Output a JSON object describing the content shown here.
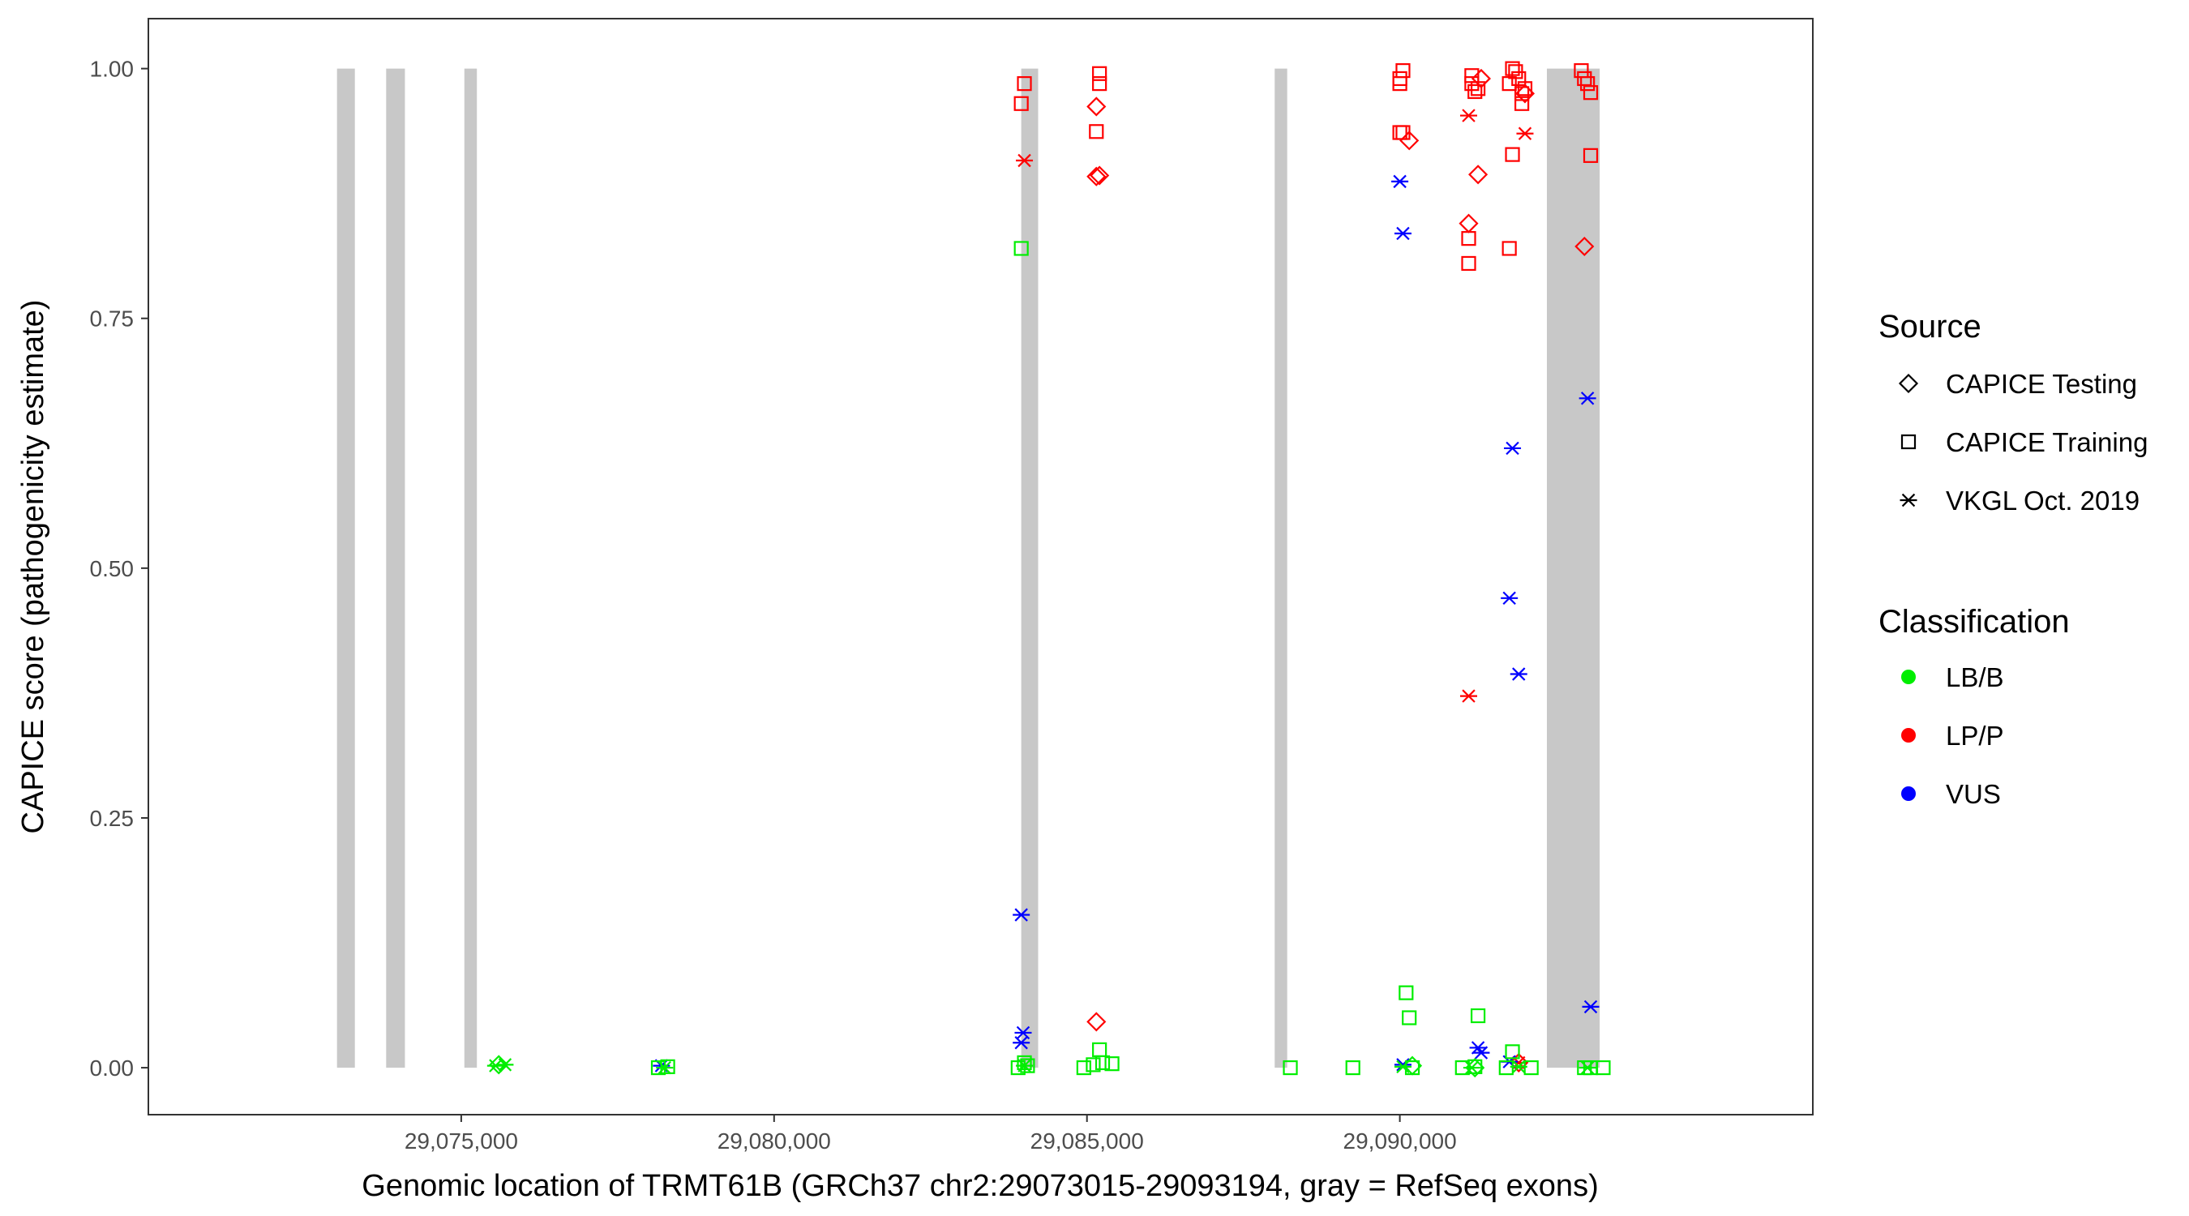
{
  "chart_data": {
    "type": "scatter",
    "xlabel": "Genomic location of TRMT61B (GRCh37 chr2:29073015-29093194, gray = RefSeq exons)",
    "ylabel": "CAPICE score (pathogenicity estimate)",
    "xlim": [
      29070000,
      29096600
    ],
    "ylim": [
      -0.047,
      1.05
    ],
    "x_ticks": [
      29075000,
      29080000,
      29085000,
      29090000
    ],
    "x_tick_labels": [
      "29,075,000",
      "29,080,000",
      "29,085,000",
      "29,090,000"
    ],
    "y_ticks": [
      0,
      0.25,
      0.5,
      0.75,
      1.0
    ],
    "y_tick_labels": [
      "0.00",
      "0.25",
      "0.50",
      "0.75",
      "1.00"
    ],
    "grid": false,
    "exons": [
      [
        29073015,
        29073300
      ],
      [
        29073800,
        29074100
      ],
      [
        29075050,
        29075250
      ],
      [
        29083950,
        29084220
      ],
      [
        29088000,
        29088200
      ],
      [
        29092350,
        29093194
      ]
    ],
    "exon_color": "#c8c8c8",
    "legend": {
      "position": "right",
      "source_title": "Source",
      "source_items": [
        {
          "label": "CAPICE Testing",
          "shape": "diamond"
        },
        {
          "label": "CAPICE Training",
          "shape": "square"
        },
        {
          "label": "VKGL Oct. 2019",
          "shape": "asterisk"
        }
      ],
      "class_title": "Classification",
      "class_items": [
        {
          "label": "LB/B",
          "color": "#00ee00"
        },
        {
          "label": "LP/P",
          "color": "#ff0000"
        },
        {
          "label": "VUS",
          "color": "#0000ff"
        }
      ]
    },
    "series": [
      {
        "source": "CAPICE Training",
        "classification": "LP/P",
        "points": [
          [
            29084000,
            0.985
          ],
          [
            29083950,
            0.965
          ],
          [
            29085200,
            0.995
          ],
          [
            29085200,
            0.985
          ],
          [
            29085150,
            0.937
          ],
          [
            29090050,
            0.998
          ],
          [
            29090000,
            0.99
          ],
          [
            29090000,
            0.985
          ],
          [
            29090050,
            0.936
          ],
          [
            29090000,
            0.936
          ],
          [
            29091150,
            0.993
          ],
          [
            29091150,
            0.985
          ],
          [
            29091250,
            0.98
          ],
          [
            29091200,
            0.977
          ],
          [
            29091100,
            0.83
          ],
          [
            29091100,
            0.805
          ],
          [
            29091800,
            1.0
          ],
          [
            29091850,
            0.997
          ],
          [
            29091900,
            0.99
          ],
          [
            29091750,
            0.985
          ],
          [
            29092000,
            0.98
          ],
          [
            29091950,
            0.975
          ],
          [
            29091950,
            0.965
          ],
          [
            29091800,
            0.914
          ],
          [
            29091750,
            0.82
          ],
          [
            29092900,
            0.998
          ],
          [
            29092950,
            0.99
          ],
          [
            29093000,
            0.985
          ],
          [
            29093050,
            0.976
          ],
          [
            29093050,
            0.913
          ]
        ]
      },
      {
        "source": "CAPICE Testing",
        "classification": "LP/P",
        "points": [
          [
            29085150,
            0.962
          ],
          [
            29085200,
            0.893
          ],
          [
            29085150,
            0.892
          ],
          [
            29085150,
            0.046
          ],
          [
            29090150,
            0.928
          ],
          [
            29091300,
            0.99
          ],
          [
            29091250,
            0.894
          ],
          [
            29091100,
            0.845
          ],
          [
            29092000,
            0.975
          ],
          [
            29092950,
            0.822
          ],
          [
            29091900,
            0.005
          ]
        ]
      },
      {
        "source": "VKGL Oct. 2019",
        "classification": "LP/P",
        "points": [
          [
            29084000,
            0.908
          ],
          [
            29091100,
            0.953
          ],
          [
            29091100,
            0.372
          ],
          [
            29092000,
            0.935
          ],
          [
            29091900,
            0.005
          ]
        ]
      },
      {
        "source": "VKGL Oct. 2019",
        "classification": "VUS",
        "points": [
          [
            29083950,
            0.153
          ],
          [
            29083980,
            0.035
          ],
          [
            29083950,
            0.025
          ],
          [
            29090000,
            0.887
          ],
          [
            29090050,
            0.835
          ],
          [
            29090050,
            0.003
          ],
          [
            29091250,
            0.02
          ],
          [
            29091300,
            0.015
          ],
          [
            29091800,
            0.62
          ],
          [
            29091750,
            0.47
          ],
          [
            29091900,
            0.394
          ],
          [
            29093000,
            0.67
          ],
          [
            29093050,
            0.061
          ],
          [
            29091750,
            0.006
          ],
          [
            29078200,
            0.002
          ]
        ]
      },
      {
        "source": "CAPICE Training",
        "classification": "LB/B",
        "points": [
          [
            29083950,
            0.82
          ],
          [
            29083900,
            0.0
          ],
          [
            29084050,
            0.002
          ],
          [
            29084000,
            0.005
          ],
          [
            29078150,
            0.0
          ],
          [
            29078300,
            0.001
          ],
          [
            29084950,
            0.0
          ],
          [
            29085100,
            0.003
          ],
          [
            29085200,
            0.018
          ],
          [
            29085250,
            0.005
          ],
          [
            29085400,
            0.004
          ],
          [
            29088250,
            0.0
          ],
          [
            29089250,
            0.0
          ],
          [
            29090100,
            0.075
          ],
          [
            29090150,
            0.05
          ],
          [
            29090200,
            0.0
          ],
          [
            29091250,
            0.052
          ],
          [
            29091000,
            0.0
          ],
          [
            29091200,
            0.001
          ],
          [
            29091800,
            0.016
          ],
          [
            29091700,
            0.0
          ],
          [
            29092100,
            0.0
          ],
          [
            29092950,
            0.0
          ],
          [
            29093050,
            0.0
          ],
          [
            29093250,
            0.0
          ]
        ]
      },
      {
        "source": "CAPICE Testing",
        "classification": "LB/B",
        "points": [
          [
            29075600,
            0.003
          ],
          [
            29091200,
            0.0
          ],
          [
            29090200,
            0.002
          ]
        ]
      },
      {
        "source": "VKGL Oct. 2019",
        "classification": "LB/B",
        "points": [
          [
            29075550,
            0.002
          ],
          [
            29075700,
            0.003
          ],
          [
            29078250,
            0.0
          ],
          [
            29084000,
            0.002
          ],
          [
            29090050,
            0.001
          ],
          [
            29091150,
            0.0
          ],
          [
            29091900,
            0.001
          ],
          [
            29093000,
            0.0
          ]
        ]
      }
    ]
  }
}
